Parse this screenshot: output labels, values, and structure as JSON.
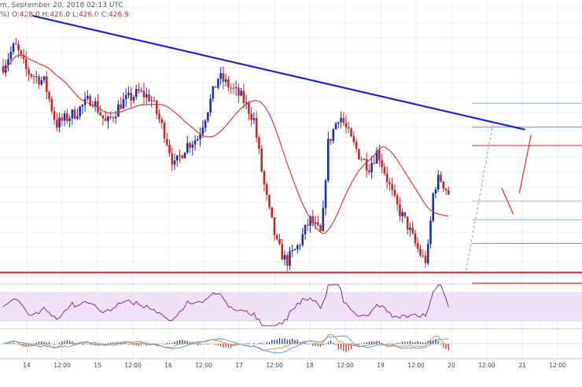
{
  "header": {
    "title_text": "m, September 20, 2018 02:13 UTC",
    "ohlc_prefix": "%)",
    "open_label": "O:",
    "open": "428.0",
    "high_label": "H:",
    "high": "428.0",
    "low_label": "L:",
    "low": "426.0",
    "close_label": "C:",
    "close": "426.9"
  },
  "colors": {
    "up": "#1a2fa8",
    "down": "#c62828",
    "sma": "#e53935",
    "trendline": "#2222cc",
    "support": "#c62828",
    "rsi": "#8e2c8e",
    "rsi_band": "#efe2f7",
    "macd_line": "#e59434",
    "macd_signal": "#5aa0d8",
    "hist_up": "#1a2fa8",
    "hist_down": "#c62828",
    "grid": "#ececec",
    "projection": "#e53935",
    "fib_lines": [
      "#6aa8d6",
      "#2bb3a0",
      "#c62828",
      "#b0b0b0"
    ]
  },
  "chart_data": {
    "type": "candlestick",
    "x_tick_labels": [
      "14",
      "12:00",
      "15",
      "12:00",
      "16",
      "12:00",
      "17",
      "12:00",
      "18",
      "12:00",
      "19",
      "12:00",
      "20",
      "12:00",
      "21",
      "12:00"
    ],
    "x_tick_hours": [
      0,
      12,
      24,
      36,
      48,
      60,
      72,
      84,
      96,
      108,
      120,
      132,
      144,
      156,
      168,
      180
    ],
    "price_range": [
      368,
      472
    ],
    "sma_period": "100",
    "trendline_points": [
      [
        -4,
        469
      ],
      [
        163,
        426
      ]
    ],
    "support_level": 372,
    "horizontal_levels": [
      {
        "p": 436,
        "x0": 151
      },
      {
        "p": 427,
        "x0": 151
      },
      {
        "p": 420,
        "x0": 151
      },
      {
        "p": 399,
        "x0": 151
      },
      {
        "p": 392,
        "x0": 151
      },
      {
        "p": 383,
        "x0": 151
      },
      {
        "p": 368,
        "x0": 151
      }
    ],
    "projection_path": [
      [
        155,
        404
      ],
      [
        159,
        394
      ],
      [
        161,
        402
      ],
      [
        165,
        424
      ]
    ]
  }
}
